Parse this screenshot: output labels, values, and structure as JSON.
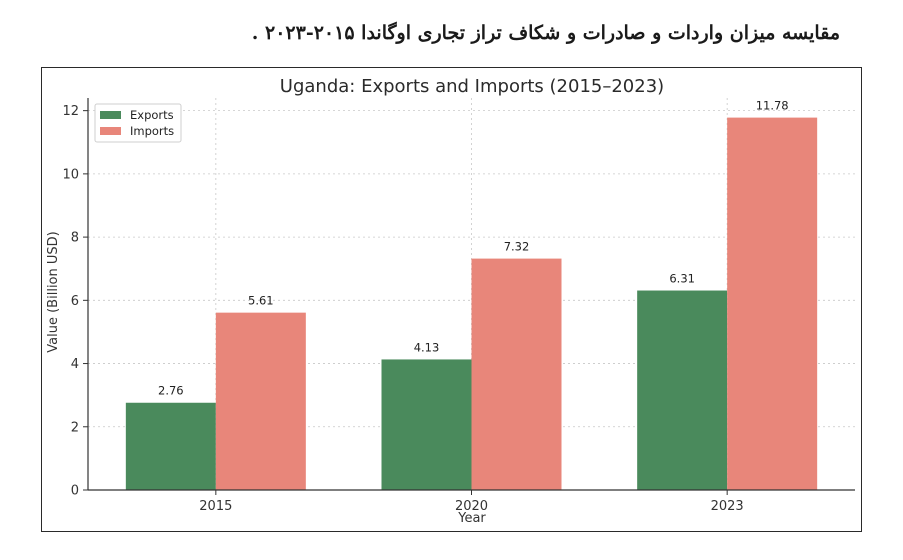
{
  "caption": "مقایسه میزان واردات و صادرات و شکاف تراز تجاری اوگاندا ۲۰۱۵-۲۰۲۳ .",
  "chart_data": {
    "type": "bar",
    "title": "Uganda: Exports and Imports (2015–2023)",
    "xlabel": "Year",
    "ylabel": "Value (Billion USD)",
    "categories": [
      "2015",
      "2020",
      "2023"
    ],
    "series": [
      {
        "name": "Exports",
        "values": [
          2.76,
          4.13,
          6.31
        ],
        "color": "#4a8a5c"
      },
      {
        "name": "Imports",
        "values": [
          5.61,
          7.32,
          11.78
        ],
        "color": "#e8867a"
      }
    ],
    "ylim": [
      0,
      12.4
    ],
    "yticks": [
      0,
      2,
      4,
      6,
      8,
      10,
      12
    ],
    "grid": true,
    "legend": "top-left"
  }
}
